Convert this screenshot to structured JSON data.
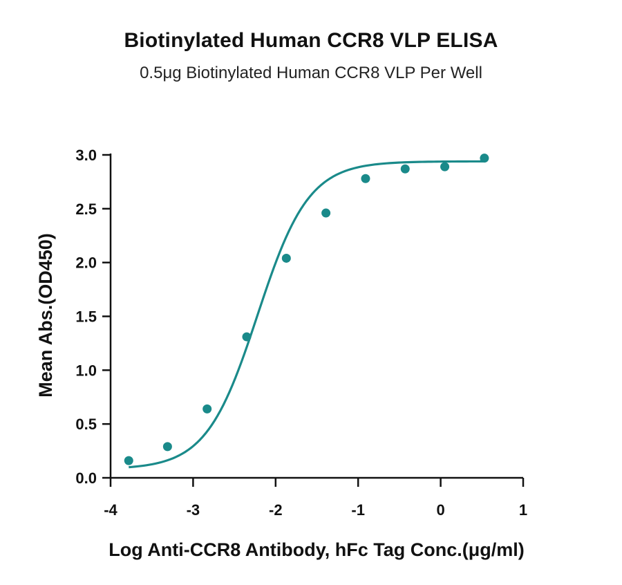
{
  "chart_data": {
    "type": "scatter",
    "title": "Biotinylated Human CCR8 VLP ELISA",
    "subtitle": "0.5μg Biotinylated Human CCR8 VLP Per Well",
    "xlabel": "Log Anti-CCR8 Antibody, hFc Tag Conc.(μg/ml)",
    "ylabel": "Mean Abs.(OD450)",
    "xlim": [
      -4,
      1
    ],
    "ylim": [
      0,
      3
    ],
    "xticks": [
      "-4",
      "-3",
      "-2",
      "-1",
      "0",
      "1"
    ],
    "yticks": [
      "0.0",
      "0.5",
      "1.0",
      "1.5",
      "2.0",
      "2.5",
      "3.0"
    ],
    "grid": false,
    "legend": "none",
    "color": "#1a8a8a",
    "series": [
      {
        "x": [
          -3.78,
          -3.31,
          -2.83,
          -2.35,
          -1.87,
          -1.39,
          -0.91,
          -0.43,
          0.05,
          0.53
        ],
        "y": [
          0.16,
          0.29,
          0.64,
          1.31,
          2.04,
          2.46,
          2.78,
          2.87,
          2.89,
          2.97
        ]
      }
    ],
    "fit_curve": {
      "model": "4PL",
      "bottom": 0.08,
      "top": 2.94,
      "log_ec50": -2.22,
      "hill_slope": 1.4
    }
  }
}
